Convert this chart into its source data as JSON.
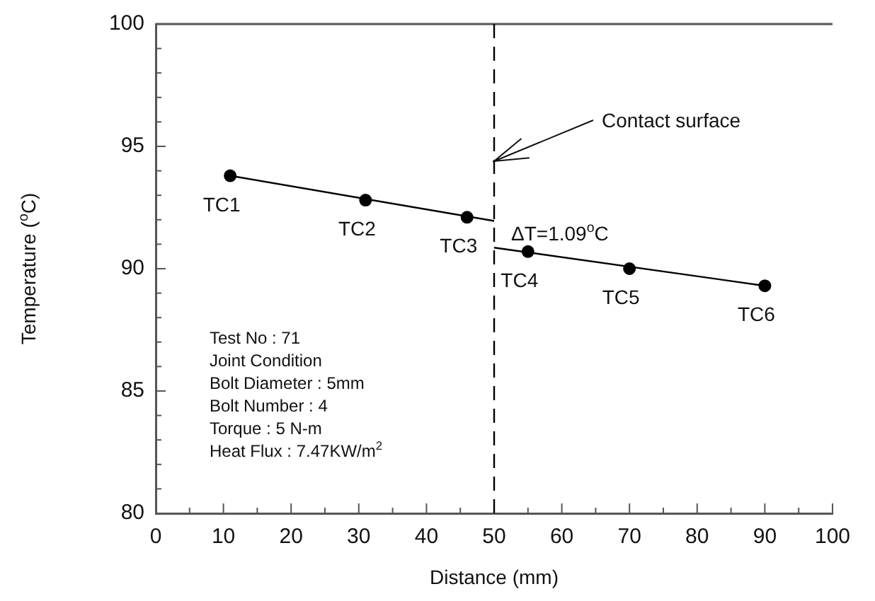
{
  "chart_data": {
    "type": "scatter",
    "xlabel": "Distance (mm)",
    "ylabel": "Temperature ($^{o}$C)",
    "xlim": [
      0,
      100
    ],
    "ylim": [
      80,
      100
    ],
    "xticks": [
      0,
      {
        "value": 5,
        "label": null
      },
      10,
      {
        "value": 15,
        "label": null
      },
      20,
      {
        "value": 25,
        "label": null
      },
      30,
      {
        "value": 35,
        "label": null
      },
      40,
      {
        "value": 45,
        "label": null
      },
      50,
      {
        "value": 55,
        "label": null
      },
      60,
      {
        "value": 65,
        "label": null
      },
      70,
      {
        "value": 75,
        "label": null
      },
      80,
      {
        "value": 85,
        "label": null
      },
      90,
      {
        "value": 95,
        "label": null
      },
      100
    ],
    "yticks": [
      80,
      {
        "value": 81,
        "label": null
      },
      {
        "value": 82,
        "label": null
      },
      {
        "value": 83,
        "label": null
      },
      {
        "value": 84,
        "label": null
      },
      85,
      {
        "value": 86,
        "label": null
      },
      {
        "value": 87,
        "label": null
      },
      {
        "value": 88,
        "label": null
      },
      {
        "value": 89,
        "label": null
      },
      90,
      {
        "value": 91,
        "label": null
      },
      {
        "value": 92,
        "label": null
      },
      {
        "value": 93,
        "label": null
      },
      {
        "value": 94,
        "label": null
      },
      95,
      {
        "value": 96,
        "label": null
      },
      {
        "value": 97,
        "label": null
      },
      {
        "value": 98,
        "label": null
      },
      {
        "value": 99,
        "label": null
      },
      100
    ],
    "grid": false,
    "legend": false,
    "marker": "circle",
    "series": [
      {
        "color": "#000000",
        "x": [
          11,
          31,
          46
        ],
        "values": [
          93.8,
          92.8,
          92.1
        ],
        "value_labels": [
          "TC1",
          "TC2",
          "TC3"
        ]
      },
      {
        "color": "#000000",
        "x": [
          55,
          70,
          90
        ],
        "values": [
          90.7,
          90.0,
          89.3
        ],
        "value_labels": [
          "TC4",
          "TC5",
          "TC6"
        ]
      },
      {
        "type": "line",
        "color": "#000000",
        "marker": "none",
        "line_style": "solid",
        "x": [
          11,
          50
        ],
        "values": [
          93.8,
          91.95
        ]
      },
      {
        "type": "line",
        "color": "#000000",
        "marker": "none",
        "line_style": "solid",
        "x": [
          50,
          90
        ],
        "values": [
          90.86,
          89.3
        ]
      }
    ],
    "ref_lines": [
      {
        "axis": "x",
        "value": 50,
        "color": "#000000",
        "line_style": "dashed"
      }
    ],
    "annotations": [
      {
        "text": "Contact surface",
        "x": 50,
        "y": 94.4
      },
      "ΔT=1.09$^{o}$C",
      "Test No : 71",
      "Joint Condition",
      "Bolt Diameter : 5mm",
      "Bolt Number : 4",
      "Torque : 5 N-m",
      "Heat Flux : 7.47KW/m$^{2}$"
    ]
  }
}
